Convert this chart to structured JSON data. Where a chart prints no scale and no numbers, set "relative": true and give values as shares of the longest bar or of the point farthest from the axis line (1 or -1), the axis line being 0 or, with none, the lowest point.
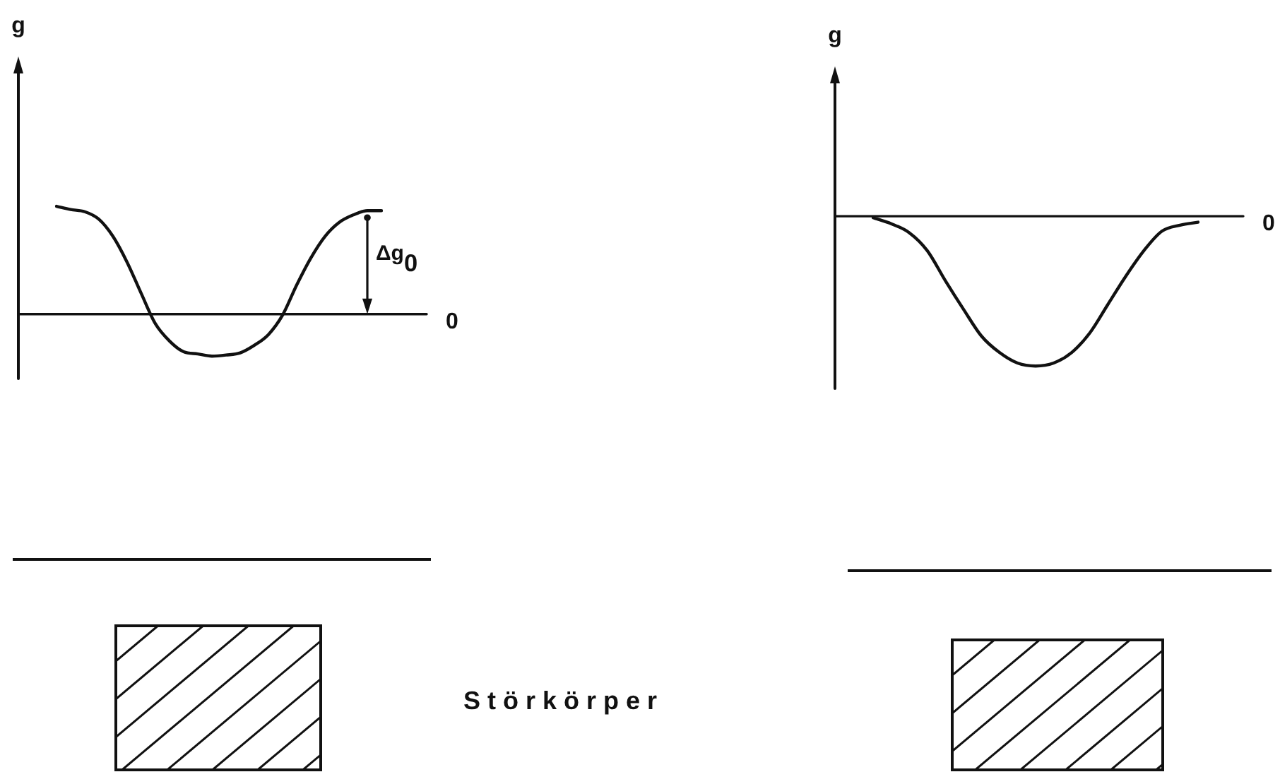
{
  "chart_data": [
    {
      "type": "line",
      "ylabel": "g",
      "relative": true,
      "color": "#111111",
      "categories": [
        null,
        null,
        null,
        null,
        null,
        null,
        null,
        null,
        null,
        null,
        null,
        null,
        null,
        null,
        null,
        null,
        null,
        null,
        null,
        null,
        null,
        null,
        null,
        null
      ],
      "values": [
        1,
        0.97,
        0.95,
        0.88,
        0.72,
        0.48,
        0.19,
        -0.09,
        -0.25,
        -0.35,
        -0.37,
        -0.39,
        -0.38,
        -0.36,
        -0.29,
        -0.19,
        -0.01,
        0.27,
        0.52,
        0.72,
        0.85,
        0.92,
        0.96,
        0.96
      ],
      "ref_lines": [
        {
          "axis": "y",
          "value": 0,
          "label": "0"
        }
      ],
      "annotations": [
        "Δg$_{0}$",
        "Störkörper"
      ]
    },
    {
      "type": "line",
      "ylabel": "g",
      "relative": true,
      "color": "#111111",
      "categories": [
        null,
        null,
        null,
        null,
        null,
        null,
        null,
        null,
        null,
        null,
        null,
        null,
        null,
        null,
        null,
        null,
        null,
        null,
        null
      ],
      "values": [
        -0.01,
        -0.05,
        -0.11,
        -0.23,
        -0.43,
        -0.62,
        -0.8,
        -0.91,
        -0.98,
        -1,
        -0.98,
        -0.91,
        -0.78,
        -0.59,
        -0.4,
        -0.23,
        -0.1,
        -0.06,
        -0.04
      ],
      "ref_lines": [
        {
          "axis": "y",
          "value": 0,
          "label": "0"
        }
      ]
    }
  ]
}
